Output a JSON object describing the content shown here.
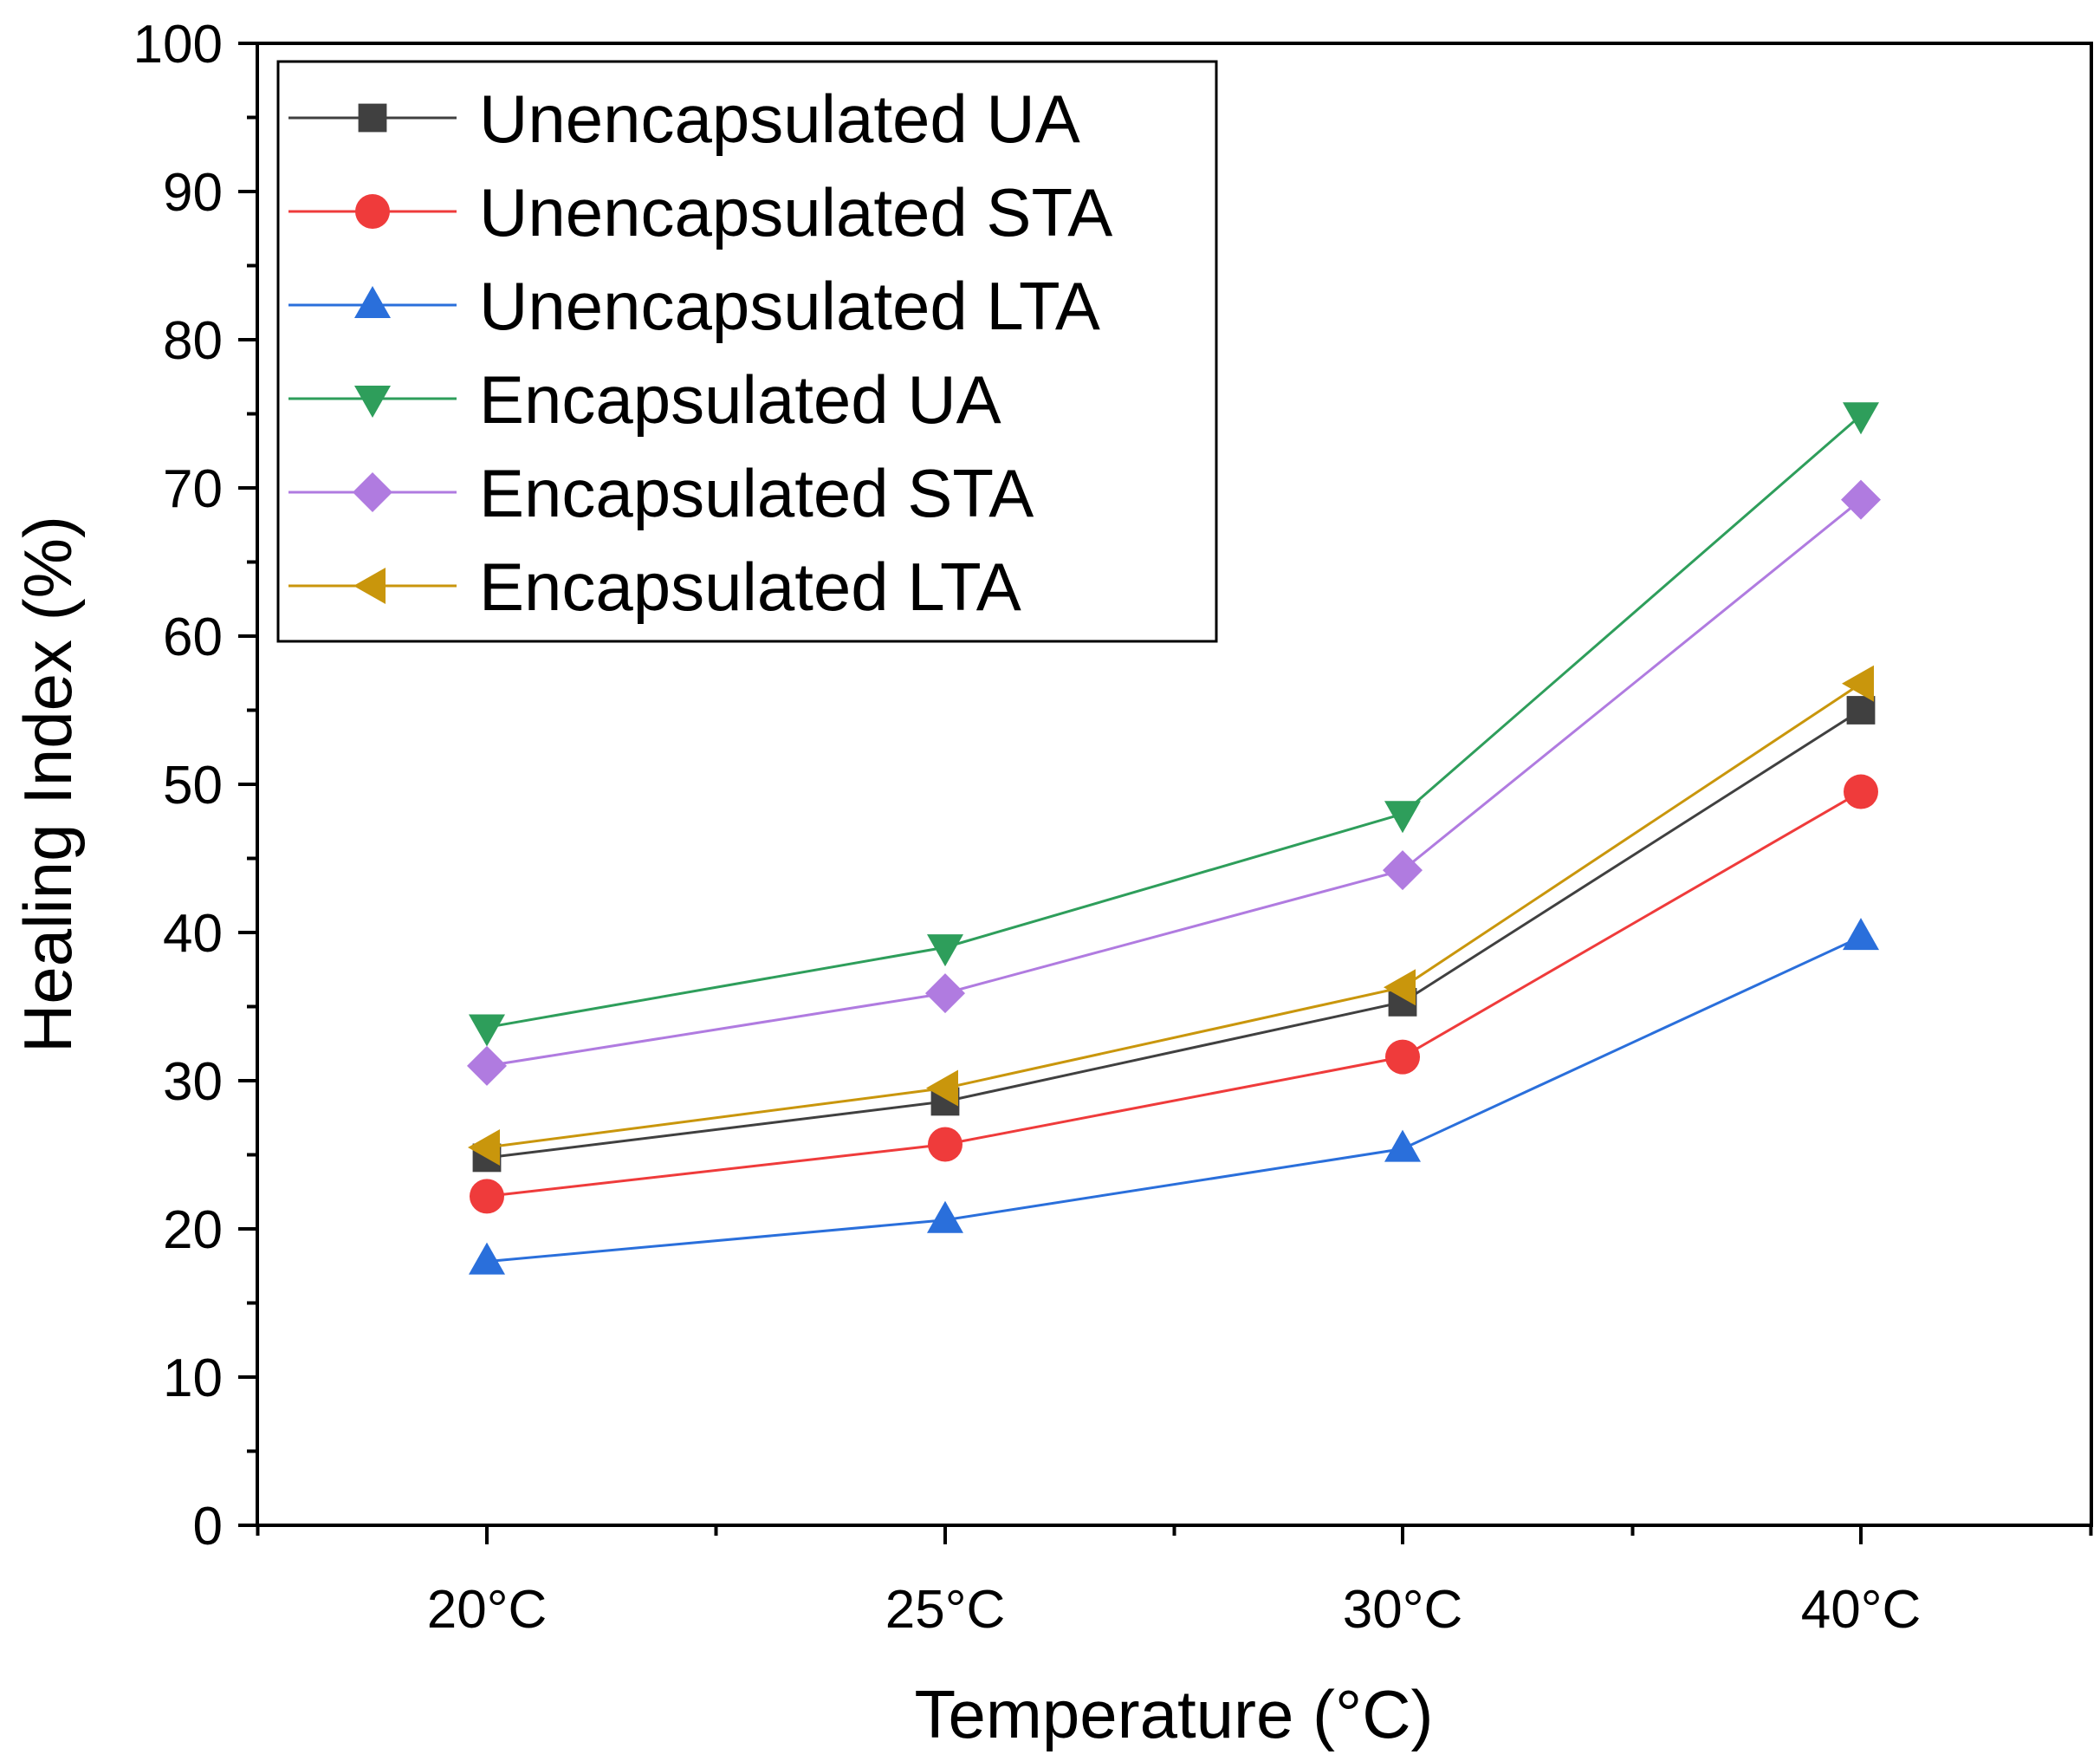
{
  "chart_data": {
    "type": "line",
    "title": "",
    "xlabel": "Temperature (°C)",
    "ylabel": "Healing Index (%)",
    "categories": [
      "20°C",
      "25°C",
      "30°C",
      "40°C"
    ],
    "ylim": [
      0,
      100
    ],
    "yticks": [
      0,
      10,
      20,
      30,
      40,
      50,
      60,
      70,
      80,
      90,
      100
    ],
    "grid": false,
    "legend_position": "top-left",
    "series": [
      {
        "name": "Unencapsulated UA",
        "marker": "square",
        "color": "#404040",
        "values": [
          24.8,
          28.6,
          35.3,
          55.0
        ]
      },
      {
        "name": "Unencapsulated STA",
        "marker": "circle",
        "color": "#ef3b3b",
        "values": [
          22.2,
          25.7,
          31.6,
          49.5
        ]
      },
      {
        "name": "Unencapsulated LTA",
        "marker": "triangle-up",
        "color": "#2a6fdb",
        "values": [
          17.8,
          20.6,
          25.4,
          39.7
        ]
      },
      {
        "name": "Encapsulated UA",
        "marker": "triangle-down",
        "color": "#2e9e5b",
        "values": [
          33.6,
          39.0,
          48.0,
          74.9
        ]
      },
      {
        "name": "Encapsulated STA",
        "marker": "diamond",
        "color": "#b07be0",
        "values": [
          31.0,
          35.9,
          44.2,
          69.2
        ]
      },
      {
        "name": "Encapsulated LTA",
        "marker": "triangle-left",
        "color": "#c9960c",
        "values": [
          25.5,
          29.5,
          36.3,
          56.8
        ]
      }
    ]
  }
}
